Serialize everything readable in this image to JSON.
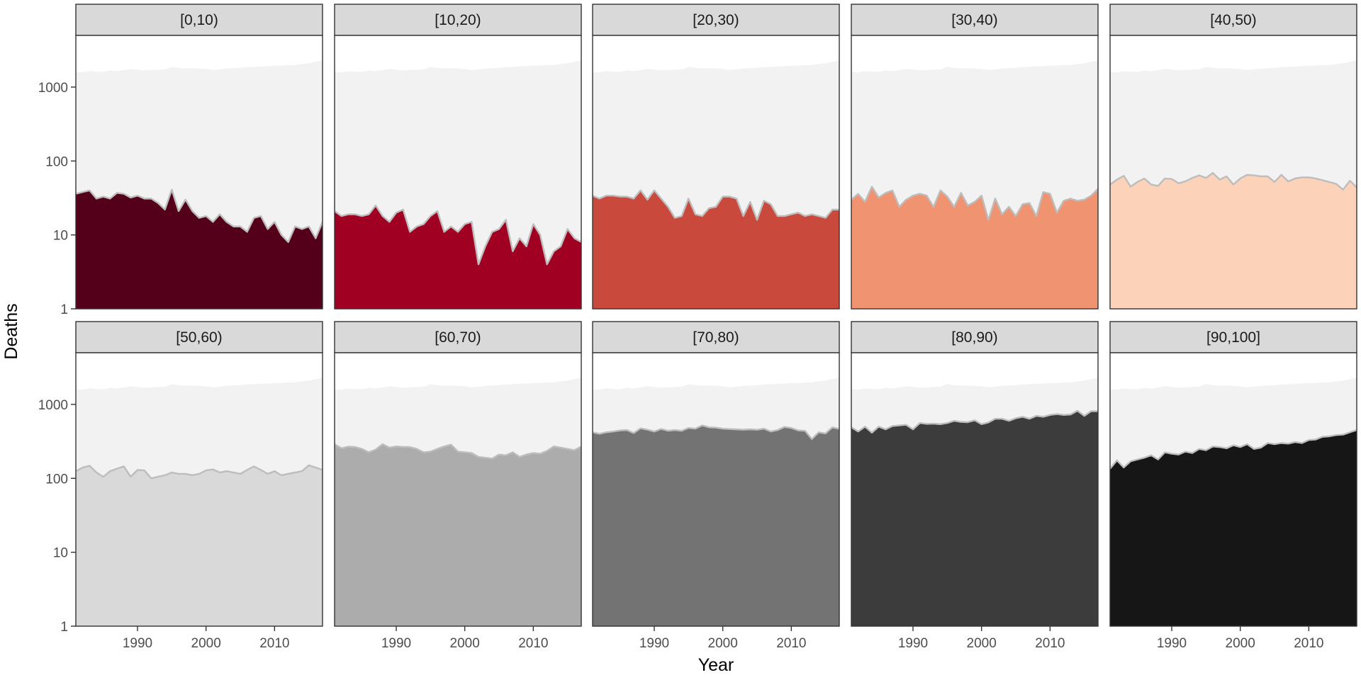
{
  "chart_data": {
    "type": "area",
    "xlabel": "Year",
    "ylabel": "Deaths",
    "x_scale": "linear",
    "y_scale": "log10",
    "xlim": [
      1981,
      2017
    ],
    "ylim": [
      1,
      5000
    ],
    "x_ticks": [
      1990,
      2000,
      2010
    ],
    "x_tick_labels": [
      "1990",
      "2000",
      "2010"
    ],
    "y_ticks": [
      1,
      10,
      100,
      1000
    ],
    "y_tick_labels": [
      "1",
      "10",
      "100",
      "1000"
    ],
    "grid": false,
    "legend": "none",
    "years": [
      1981,
      1982,
      1983,
      1984,
      1985,
      1986,
      1987,
      1988,
      1989,
      1990,
      1991,
      1992,
      1993,
      1994,
      1995,
      1996,
      1997,
      1998,
      1999,
      2000,
      2001,
      2002,
      2003,
      2004,
      2005,
      2006,
      2007,
      2008,
      2009,
      2010,
      2011,
      2012,
      2013,
      2014,
      2015,
      2016,
      2017
    ],
    "total": {
      "color": "#f2f2f2",
      "values": [
        1600,
        1580,
        1650,
        1620,
        1600,
        1680,
        1640,
        1700,
        1760,
        1720,
        1680,
        1700,
        1720,
        1740,
        1880,
        1820,
        1790,
        1800,
        1780,
        1760,
        1700,
        1740,
        1780,
        1800,
        1820,
        1860,
        1880,
        1900,
        1920,
        1940,
        1960,
        1980,
        1990,
        2050,
        2100,
        2200,
        2300
      ]
    },
    "panels": [
      {
        "label": "[0,10)",
        "color": "#54001b",
        "values": [
          36,
          38,
          40,
          31,
          33,
          31,
          37,
          36,
          32,
          34,
          31,
          31,
          27,
          22,
          41,
          21,
          30,
          21,
          17,
          18,
          15,
          19,
          15,
          13,
          13,
          11,
          17,
          18,
          12,
          15,
          10,
          8,
          13,
          12,
          13,
          9,
          15
        ]
      },
      {
        "label": "[10,20)",
        "color": "#a00022",
        "values": [
          21,
          18,
          19,
          19,
          18,
          19,
          25,
          18,
          15,
          20,
          22,
          11,
          13,
          14,
          18,
          21,
          11,
          13,
          11,
          14,
          15,
          4,
          7,
          11,
          12,
          16,
          6,
          9,
          7,
          14,
          10,
          4,
          6,
          7,
          12,
          9,
          8
        ]
      },
      {
        "label": "[20,30)",
        "color": "#c9493c",
        "values": [
          34,
          31,
          34,
          34,
          33,
          33,
          31,
          40,
          30,
          40,
          31,
          24,
          17,
          18,
          31,
          19,
          18,
          23,
          24,
          33,
          33,
          31,
          18,
          28,
          16,
          29,
          26,
          18,
          18,
          19,
          20,
          18,
          19,
          18,
          17,
          22,
          22
        ]
      },
      {
        "label": "[30,40)",
        "color": "#f09370",
        "values": [
          30,
          36,
          28,
          45,
          32,
          37,
          40,
          24,
          30,
          34,
          36,
          34,
          24,
          40,
          33,
          24,
          37,
          25,
          28,
          34,
          16,
          31,
          19,
          24,
          18,
          26,
          27,
          18,
          38,
          36,
          20,
          29,
          31,
          29,
          30,
          34,
          42
        ]
      },
      {
        "label": "[40,50)",
        "color": "#fcd2b9",
        "values": [
          48,
          56,
          63,
          45,
          52,
          58,
          48,
          46,
          58,
          57,
          50,
          53,
          59,
          64,
          59,
          69,
          56,
          62,
          48,
          58,
          65,
          64,
          62,
          62,
          52,
          65,
          53,
          58,
          60,
          60,
          58,
          55,
          52,
          49,
          41,
          54,
          44
        ]
      },
      {
        "label": "[50,60)",
        "color": "#d9d9d9",
        "values": [
          125,
          140,
          148,
          120,
          105,
          125,
          135,
          145,
          105,
          130,
          128,
          100,
          105,
          110,
          120,
          115,
          115,
          110,
          115,
          128,
          132,
          120,
          125,
          120,
          115,
          130,
          145,
          130,
          115,
          125,
          110,
          115,
          120,
          125,
          150,
          140,
          130
        ]
      },
      {
        "label": "[60,70)",
        "color": "#acacac",
        "values": [
          290,
          255,
          268,
          265,
          250,
          225,
          245,
          290,
          260,
          270,
          265,
          265,
          250,
          225,
          230,
          250,
          270,
          285,
          230,
          225,
          220,
          195,
          190,
          185,
          210,
          205,
          225,
          195,
          210,
          220,
          215,
          235,
          270,
          260,
          250,
          240,
          270
        ]
      },
      {
        "label": "[70,80)",
        "color": "#737373",
        "values": [
          420,
          400,
          420,
          430,
          445,
          450,
          410,
          475,
          455,
          430,
          465,
          440,
          450,
          440,
          480,
          470,
          520,
          490,
          485,
          470,
          465,
          460,
          455,
          460,
          455,
          470,
          430,
          450,
          495,
          480,
          445,
          440,
          340,
          420,
          405,
          490,
          465
        ]
      },
      {
        "label": "[80,90)",
        "color": "#3c3c3c",
        "values": [
          490,
          430,
          500,
          415,
          500,
          460,
          510,
          520,
          530,
          460,
          560,
          545,
          550,
          540,
          560,
          600,
          580,
          575,
          610,
          540,
          570,
          640,
          640,
          600,
          650,
          680,
          640,
          700,
          680,
          720,
          740,
          720,
          730,
          820,
          700,
          810,
          810
        ]
      },
      {
        "label": "[90,100]",
        "color": "#161616",
        "values": [
          135,
          175,
          140,
          170,
          180,
          190,
          205,
          180,
          225,
          215,
          210,
          230,
          220,
          250,
          240,
          270,
          265,
          255,
          280,
          265,
          290,
          250,
          260,
          300,
          290,
          300,
          295,
          310,
          300,
          330,
          335,
          365,
          370,
          385,
          390,
          420,
          450
        ]
      }
    ]
  }
}
